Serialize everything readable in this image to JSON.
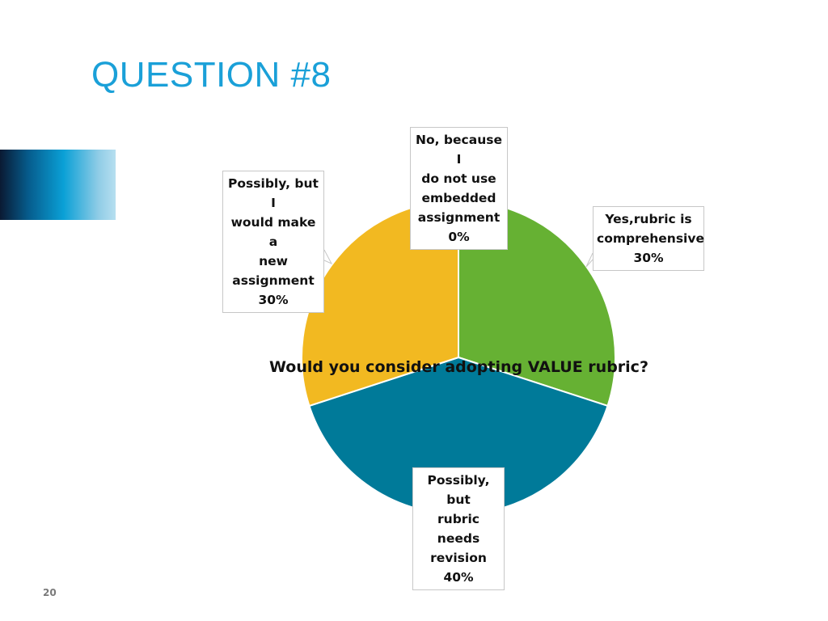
{
  "slide": {
    "title": "QUESTION #8",
    "page_number": "20"
  },
  "chart_data": {
    "type": "pie",
    "title": "Would you consider adopting VALUE rubric?",
    "slices": [
      {
        "label_lines": [
          "No, because I",
          "do not use",
          "embedded",
          "assignment"
        ],
        "value_label": "0%",
        "value": 0,
        "color": "#8a8a8a"
      },
      {
        "label_lines": [
          "Yes,rubric is",
          "comprehensive"
        ],
        "value_label": "30%",
        "value": 30,
        "color": "#66b133"
      },
      {
        "label_lines": [
          "Possibly, but",
          "rubric needs",
          "revision"
        ],
        "value_label": "40%",
        "value": 40,
        "color": "#007a99"
      },
      {
        "label_lines": [
          "Possibly, but I",
          "would make a",
          "new",
          "assignment"
        ],
        "value_label": "30%",
        "value": 30,
        "color": "#f2b921"
      }
    ],
    "start_angle_deg": 0,
    "direction": "clockwise"
  },
  "colors": {
    "title": "#1aa0d8",
    "slice_border": "#ffffff"
  }
}
